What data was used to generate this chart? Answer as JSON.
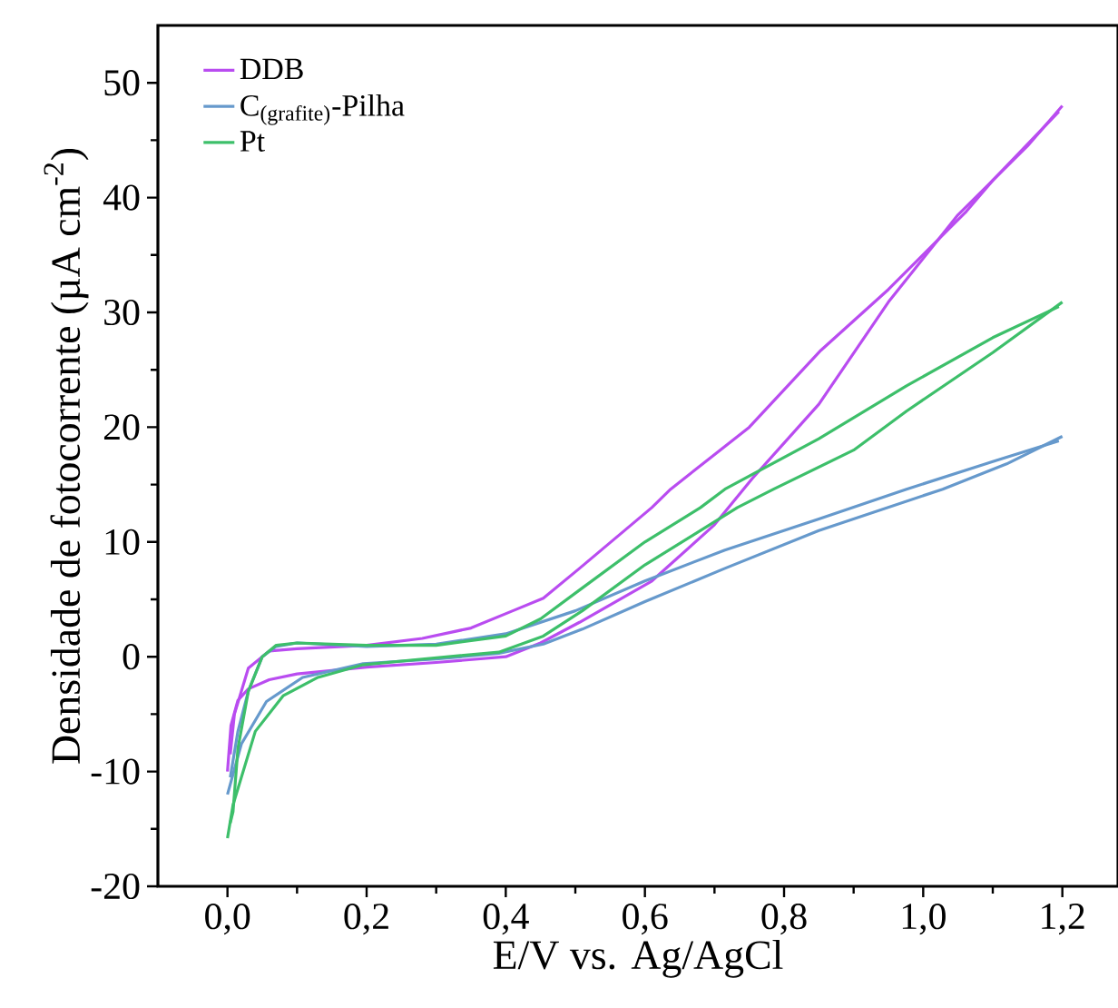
{
  "chart_data": {
    "type": "line",
    "xlabel": "E/V vs. Ag/AgCl",
    "ylabel": "Densidade de fotocorrente (µA cm$^{-2}$)",
    "xlim": [
      -0.1,
      1.28
    ],
    "ylim": [
      -20,
      55
    ],
    "xticks": [
      {
        "value": 0,
        "label": "0,0"
      },
      {
        "value": 0.2,
        "label": "0,2"
      },
      {
        "value": 0.4,
        "label": "0,4"
      },
      {
        "value": 0.6,
        "label": "0,6"
      },
      {
        "value": 0.8,
        "label": "0,8"
      },
      {
        "value": 1.0,
        "label": "1,0"
      },
      {
        "value": 1.2,
        "label": "1,2"
      }
    ],
    "yticks": [
      -20,
      -10,
      0,
      10,
      20,
      30,
      40,
      50
    ],
    "legend": "top left",
    "series": [
      {
        "name": "DDB",
        "color": "#b94cf0",
        "x": [
          0,
          0.005,
          0.015,
          0.03,
          0.06,
          0.1,
          0.2,
          0.3,
          0.4,
          0.45,
          0.506,
          0.61,
          0.7,
          0.754,
          0.85,
          0.95,
          1.05,
          1.15,
          1.2
        ],
        "values": [
          -10,
          -6,
          -3.8,
          -2.8,
          -2.0,
          -1.5,
          -0.9,
          -0.5,
          0,
          1.2,
          3.0,
          6.6,
          11.5,
          15.5,
          22,
          30.9,
          38.5,
          44.5,
          48
        ]
      },
      {
        "color": "#b94cf0",
        "x": [
          0.004,
          0.01,
          0.03,
          0.06,
          0.1,
          0.2,
          0.28,
          0.35,
          0.41,
          0.454,
          0.506,
          0.61,
          0.637,
          0.75,
          0.853,
          0.95,
          1.062,
          1.1,
          1.195
        ],
        "values": [
          -8.5,
          -5,
          -1,
          0.5,
          0.7,
          1.0,
          1.6,
          2.5,
          4.0,
          5.1,
          7.7,
          13,
          14.6,
          20,
          26.7,
          32,
          38.8,
          41.5,
          47.5
        ]
      },
      {
        "name": "C$_{(grafite)}$-Pilha",
        "color": "#6699cc",
        "x": [
          0,
          0.02,
          0.056,
          0.108,
          0.195,
          0.3,
          0.39,
          0.454,
          0.51,
          0.6,
          0.715,
          0.85,
          1.028,
          1.12,
          1.2
        ],
        "values": [
          -12,
          -7.6,
          -3.9,
          -1.8,
          -0.6,
          -0.2,
          0.3,
          1.1,
          2.4,
          4.8,
          7.7,
          11,
          14.6,
          16.8,
          19.2
        ]
      },
      {
        "color": "#6699cc",
        "x": [
          0.004,
          0.015,
          0.03,
          0.05,
          0.07,
          0.1,
          0.2,
          0.3,
          0.4,
          0.45,
          0.5,
          0.6,
          0.715,
          0.85,
          0.976,
          1.1,
          1.195
        ],
        "values": [
          -10.5,
          -6.5,
          -3,
          0,
          0.9,
          1.2,
          0.9,
          1.1,
          2.0,
          3.0,
          4.0,
          6.6,
          9.3,
          12,
          14.6,
          17,
          18.8
        ]
      },
      {
        "name": "Pt",
        "color": "#3dbf6a",
        "x": [
          0,
          0.008,
          0.04,
          0.08,
          0.13,
          0.195,
          0.28,
          0.39,
          0.454,
          0.51,
          0.6,
          0.733,
          0.785,
          0.9,
          0.976,
          1.1,
          1.2
        ],
        "values": [
          -15.8,
          -12.9,
          -6.5,
          -3.4,
          -1.8,
          -0.7,
          -0.2,
          0.4,
          1.8,
          4.0,
          8,
          13,
          14.6,
          18,
          21.4,
          26.5,
          30.9
        ]
      },
      {
        "color": "#3dbf6a",
        "x": [
          0.004,
          0.008,
          0.015,
          0.03,
          0.05,
          0.07,
          0.1,
          0.2,
          0.3,
          0.4,
          0.45,
          0.508,
          0.6,
          0.68,
          0.715,
          0.85,
          0.976,
          1.1,
          1.195
        ],
        "values": [
          -14.5,
          -13.5,
          -8,
          -3,
          0,
          1.0,
          1.2,
          1.0,
          1.0,
          1.8,
          3.3,
          5.9,
          10,
          13,
          14.6,
          19,
          23.6,
          27.8,
          30.5
        ]
      }
    ]
  }
}
